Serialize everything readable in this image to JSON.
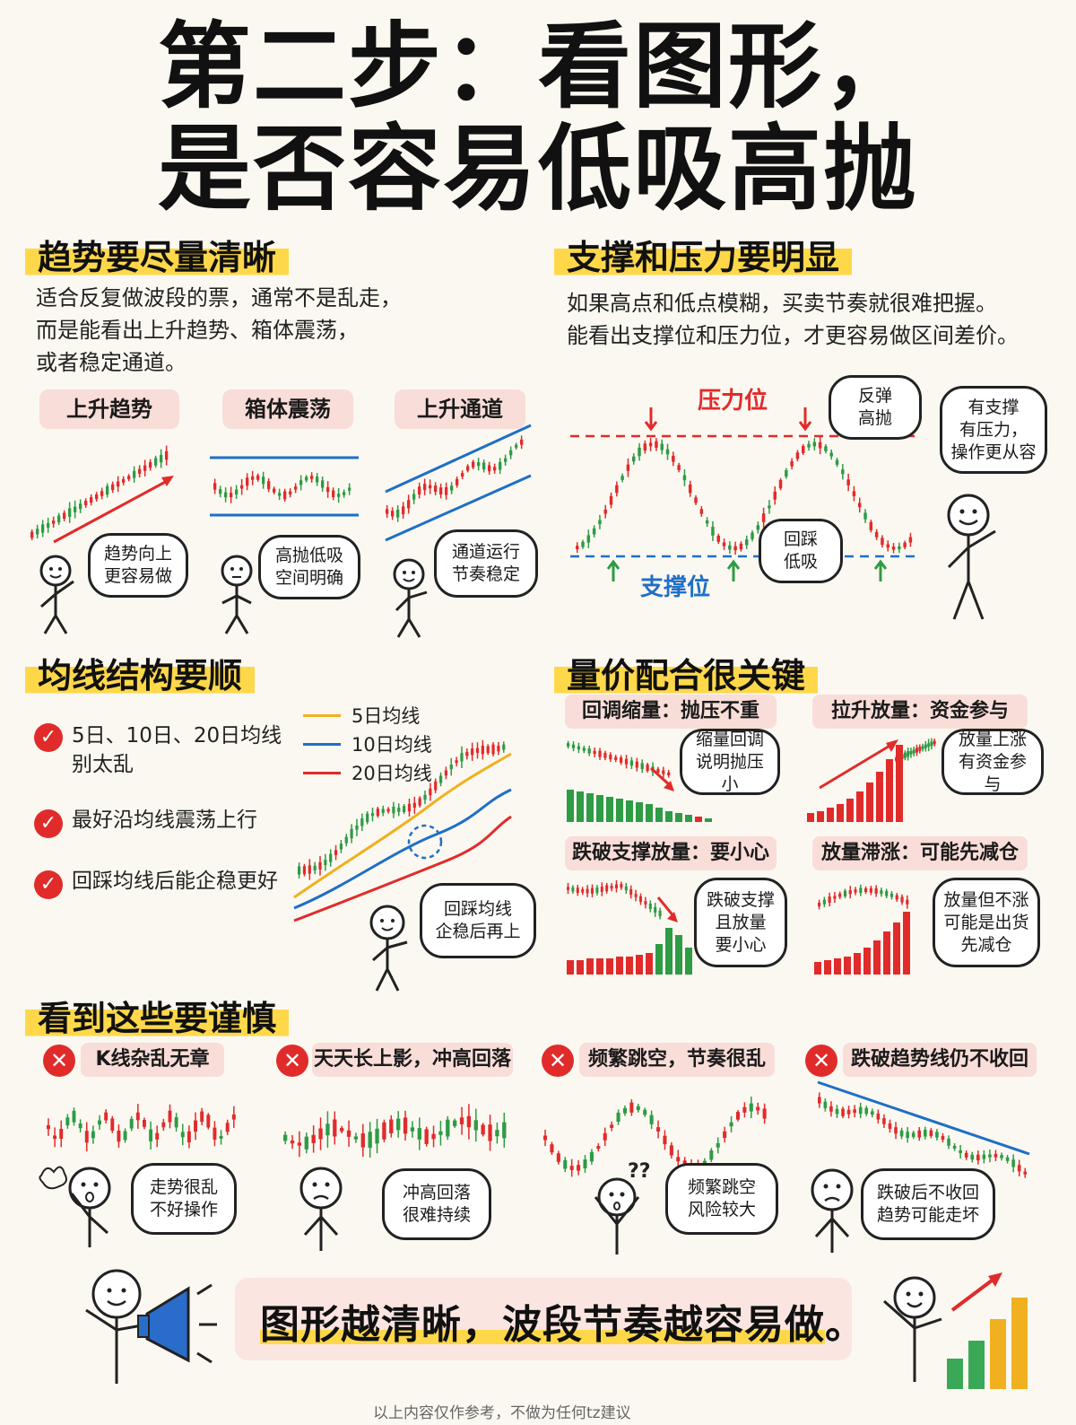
{
  "title": {
    "line1": "第二步：看图形，",
    "line2": "是否容易低吸高抛"
  },
  "trend": {
    "heading": "趋势要尽量清晰",
    "desc": [
      "适合反复做波段的票，通常不是乱走，",
      "而是能看出上升趋势、箱体震荡，",
      "或者稳定通道。"
    ],
    "tags": [
      "上升趋势",
      "箱体震荡",
      "上升通道"
    ],
    "bubbles": [
      [
        "趋势向上",
        "更容易做"
      ],
      [
        "高抛低吸",
        "空间明确"
      ],
      [
        "通道运行",
        "节奏稳定"
      ]
    ]
  },
  "support": {
    "heading": "支撑和压力要明显",
    "desc": [
      "如果高点和低点模糊，买卖节奏就很难把握。",
      "能看出支撑位和压力位，才更容易做区间差价。"
    ],
    "resistance_label": "压力位",
    "support_label": "支撑位",
    "bubble_top": [
      "反弹",
      "高抛"
    ],
    "bubble_bottom": [
      "回踩",
      "低吸"
    ],
    "bubble_right": [
      "有支撑",
      "有压力，",
      "操作更从容"
    ]
  },
  "ma": {
    "heading": "均线结构要顺",
    "items": [
      [
        "5日、10日、20日均线",
        "别太乱"
      ],
      [
        "最好沿均线震荡上行"
      ],
      [
        "回踩均线后能企稳更好"
      ]
    ],
    "legend": [
      "5日均线",
      "10日均线",
      "20日均线"
    ],
    "bubble": [
      "回踩均线",
      "企稳后再上"
    ]
  },
  "volume": {
    "heading": "量价配合很关键",
    "cells": [
      {
        "tag": "回调缩量：抛压不重",
        "bubble": [
          "缩量回调",
          "说明抛压小"
        ]
      },
      {
        "tag": "拉升放量：资金参与",
        "bubble": [
          "放量上涨",
          "有资金参与"
        ]
      },
      {
        "tag": "跌破支撑放量：要小心",
        "bubble": [
          "跌破支撑",
          "且放量",
          "要小心"
        ]
      },
      {
        "tag": "放量滞涨：可能先减仓",
        "bubble": [
          "放量但不涨",
          "可能是出货",
          "先减仓"
        ]
      }
    ]
  },
  "caution": {
    "heading": "看到这些要谨慎",
    "items": [
      {
        "tag": "K线杂乱无章",
        "bubble": [
          "走势很乱",
          "不好操作"
        ]
      },
      {
        "tag": "天天长上影，冲高回落",
        "bubble": [
          "冲高回落",
          "很难持续"
        ]
      },
      {
        "tag": "频繁跳空，节奏很乱",
        "bubble": [
          "频繁跳空",
          "风险较大"
        ]
      },
      {
        "tag": "跌破趋势线仍不收回",
        "bubble": [
          "跌破后不收回",
          "趋势可能走坏"
        ]
      }
    ]
  },
  "slogan": "图形越清晰，波段节奏越容易做。",
  "footer": "以上内容仅作参考，不做为任何tz建议",
  "colors": {
    "up": "#e12b2b",
    "down": "#2e9b45",
    "highlight": "#ffd84a",
    "tag_bg": "#f9ddd8",
    "blue": "#1e6fc7",
    "orange": "#f0b020"
  }
}
